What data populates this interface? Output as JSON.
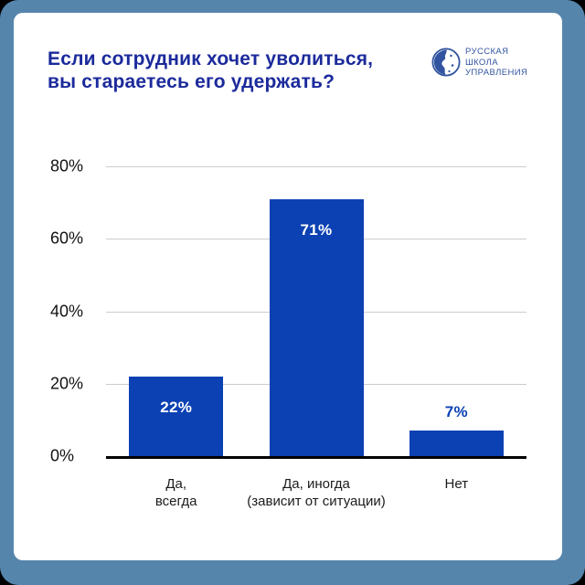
{
  "page": {
    "background": "#000000",
    "frame_color": "#5685ac",
    "card_color": "#ffffff"
  },
  "header": {
    "title_lines": [
      "Если сотрудник хочет уволиться,",
      "вы стараетесь его удержать?"
    ],
    "title_color": "#1b2a9b"
  },
  "logo": {
    "text_lines": [
      "РУССКАЯ",
      "ШКОЛА",
      "УПРАВЛЕНИЯ"
    ],
    "color": "#3254a0"
  },
  "chart_data": {
    "type": "bar",
    "title": "Если сотрудник хочет уволиться, вы стараетесь его удержать?",
    "categories": [
      "Да, всегда",
      "Да, иногда (зависит от ситуации)",
      "Нет"
    ],
    "category_lines": [
      [
        "Да,",
        "всегда"
      ],
      [
        "Да, иногда",
        "(зависит от ситуации)"
      ],
      [
        "Нет"
      ]
    ],
    "values": [
      22,
      71,
      7
    ],
    "value_labels": [
      "22%",
      "71%",
      "7%"
    ],
    "value_label_positions": [
      "inside",
      "inside",
      "above"
    ],
    "bar_color": "#0c41b3",
    "inside_label_color": "#ffffff",
    "above_label_color": "#0c41b3",
    "xlabel": "",
    "ylabel": "",
    "ylim": [
      0,
      80
    ],
    "ytick_labels": [
      "0%",
      "20%",
      "40%",
      "60%",
      "80%"
    ],
    "grid": "horizontal",
    "gridline_color": "#cccccc",
    "axis_color": "#000000",
    "legend": "none"
  }
}
